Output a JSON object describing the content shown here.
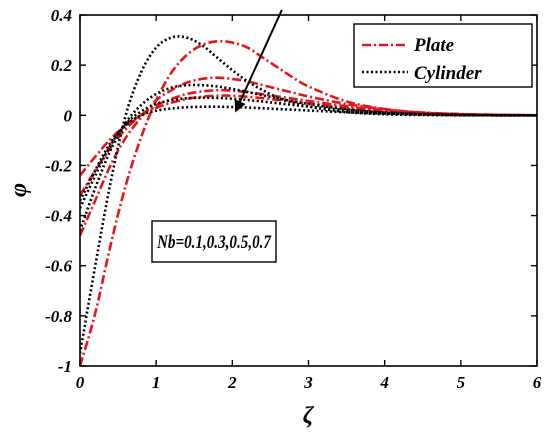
{
  "chart_data": {
    "type": "line",
    "xlabel": "ζ",
    "ylabel": "φ",
    "xlim": [
      0,
      6
    ],
    "ylim": [
      -1,
      0.4
    ],
    "xticks": [
      0,
      1,
      2,
      3,
      4,
      5,
      6
    ],
    "yticks": [
      -1,
      -0.8,
      -0.6,
      -0.4,
      -0.2,
      0,
      0.2,
      0.4
    ],
    "xtick_labels": [
      "0",
      "1",
      "2",
      "3",
      "4",
      "5",
      "6"
    ],
    "ytick_labels": [
      "-1",
      "-0.8",
      "-0.6",
      "-0.4",
      "-0.2",
      "0",
      "0.2",
      "0.4"
    ],
    "grid": false,
    "legend_position": "top-right",
    "legend": [
      {
        "label": "Plate",
        "color": "#e8141b",
        "style": "dash-dot"
      },
      {
        "label": "Cylinder",
        "color": "#000000",
        "style": "dotted"
      }
    ],
    "annotation": {
      "text": "Nb=0.1,0.3,0.5,0.7",
      "arrow_from": [
        2.65,
        0.42
      ],
      "arrow_to": [
        2.05,
        0.02
      ]
    },
    "series": [
      {
        "group": "Plate",
        "color": "#e8141b",
        "x": [
          0,
          0.2,
          0.4,
          0.6,
          0.8,
          1.0,
          1.2,
          1.4,
          1.6,
          1.8,
          2.0,
          2.2,
          2.4,
          2.6,
          2.8,
          3.0,
          3.5,
          4.0,
          4.5,
          5.0,
          5.5,
          6.0
        ],
        "y": [
          -1.0,
          -0.79,
          -0.52,
          -0.28,
          -0.09,
          0.06,
          0.17,
          0.24,
          0.28,
          0.295,
          0.29,
          0.27,
          0.23,
          0.19,
          0.15,
          0.115,
          0.055,
          0.025,
          0.01,
          0.004,
          0.001,
          0.0
        ]
      },
      {
        "group": "Plate",
        "color": "#e8141b",
        "x": [
          0,
          0.2,
          0.4,
          0.6,
          0.8,
          1.0,
          1.2,
          1.4,
          1.6,
          1.8,
          2.0,
          2.2,
          2.4,
          2.6,
          2.8,
          3.0,
          3.5,
          4.0,
          4.5,
          5.0,
          5.5,
          6.0
        ],
        "y": [
          -0.48,
          -0.34,
          -0.2,
          -0.09,
          -0.01,
          0.06,
          0.1,
          0.13,
          0.145,
          0.15,
          0.145,
          0.135,
          0.12,
          0.105,
          0.09,
          0.075,
          0.045,
          0.024,
          0.011,
          0.005,
          0.002,
          0.0
        ]
      },
      {
        "group": "Plate",
        "color": "#e8141b",
        "x": [
          0,
          0.2,
          0.4,
          0.6,
          0.8,
          1.0,
          1.2,
          1.4,
          1.6,
          1.8,
          2.0,
          2.2,
          2.4,
          2.6,
          2.8,
          3.0,
          3.5,
          4.0,
          4.5,
          5.0,
          5.5,
          6.0
        ],
        "y": [
          -0.32,
          -0.22,
          -0.13,
          -0.055,
          0.0,
          0.04,
          0.065,
          0.085,
          0.095,
          0.1,
          0.098,
          0.092,
          0.084,
          0.075,
          0.066,
          0.057,
          0.036,
          0.02,
          0.01,
          0.004,
          0.001,
          0.0
        ]
      },
      {
        "group": "Plate",
        "color": "#e8141b",
        "x": [
          0,
          0.2,
          0.4,
          0.6,
          0.8,
          1.0,
          1.2,
          1.4,
          1.6,
          1.8,
          2.0,
          2.2,
          2.4,
          2.6,
          2.8,
          3.0,
          3.5,
          4.0,
          4.5,
          5.0,
          5.5,
          6.0
        ],
        "y": [
          -0.24,
          -0.165,
          -0.095,
          -0.04,
          0.0,
          0.03,
          0.05,
          0.065,
          0.074,
          0.078,
          0.078,
          0.074,
          0.068,
          0.061,
          0.054,
          0.047,
          0.03,
          0.017,
          0.008,
          0.003,
          0.001,
          0.0
        ]
      },
      {
        "group": "Cylinder",
        "color": "#000000",
        "x": [
          0,
          0.2,
          0.4,
          0.6,
          0.8,
          1.0,
          1.2,
          1.4,
          1.6,
          1.8,
          2.0,
          2.2,
          2.4,
          2.6,
          2.8,
          3.0,
          3.5,
          4.0,
          4.5,
          5.0,
          5.5,
          6.0
        ],
        "y": [
          -0.95,
          -0.6,
          -0.27,
          0.0,
          0.17,
          0.27,
          0.31,
          0.31,
          0.28,
          0.23,
          0.18,
          0.135,
          0.1,
          0.07,
          0.05,
          0.035,
          0.013,
          0.004,
          0.001,
          0.0,
          0.0,
          0.0
        ]
      },
      {
        "group": "Cylinder",
        "color": "#000000",
        "x": [
          0,
          0.2,
          0.4,
          0.6,
          0.8,
          1.0,
          1.2,
          1.4,
          1.6,
          1.8,
          2.0,
          2.2,
          2.4,
          2.6,
          2.8,
          3.0,
          3.5,
          4.0,
          4.5,
          5.0,
          5.5,
          6.0
        ],
        "y": [
          -0.46,
          -0.29,
          -0.14,
          -0.03,
          0.04,
          0.085,
          0.11,
          0.12,
          0.12,
          0.115,
          0.105,
          0.093,
          0.08,
          0.068,
          0.056,
          0.045,
          0.024,
          0.011,
          0.004,
          0.001,
          0.0,
          0.0
        ]
      },
      {
        "group": "Cylinder",
        "color": "#000000",
        "x": [
          0,
          0.2,
          0.4,
          0.6,
          0.8,
          1.0,
          1.2,
          1.4,
          1.6,
          1.8,
          2.0,
          2.2,
          2.4,
          2.6,
          2.8,
          3.0,
          3.5,
          4.0,
          4.5,
          5.0,
          5.5,
          6.0
        ],
        "y": [
          -0.37,
          -0.24,
          -0.12,
          -0.035,
          0.015,
          0.045,
          0.06,
          0.068,
          0.07,
          0.069,
          0.066,
          0.061,
          0.055,
          0.048,
          0.041,
          0.035,
          0.021,
          0.011,
          0.005,
          0.002,
          0.0,
          0.0
        ]
      },
      {
        "group": "Cylinder",
        "color": "#000000",
        "x": [
          0,
          0.2,
          0.4,
          0.6,
          0.8,
          1.0,
          1.2,
          1.4,
          1.6,
          1.8,
          2.0,
          2.2,
          2.4,
          2.6,
          2.8,
          3.0,
          3.5,
          4.0,
          4.5,
          5.0,
          5.5,
          6.0
        ],
        "y": [
          -0.34,
          -0.22,
          -0.11,
          -0.04,
          0.0,
          0.018,
          0.027,
          0.032,
          0.034,
          0.034,
          0.033,
          0.031,
          0.028,
          0.025,
          0.022,
          0.019,
          0.012,
          0.007,
          0.003,
          0.001,
          0.0,
          0.0
        ]
      }
    ]
  }
}
